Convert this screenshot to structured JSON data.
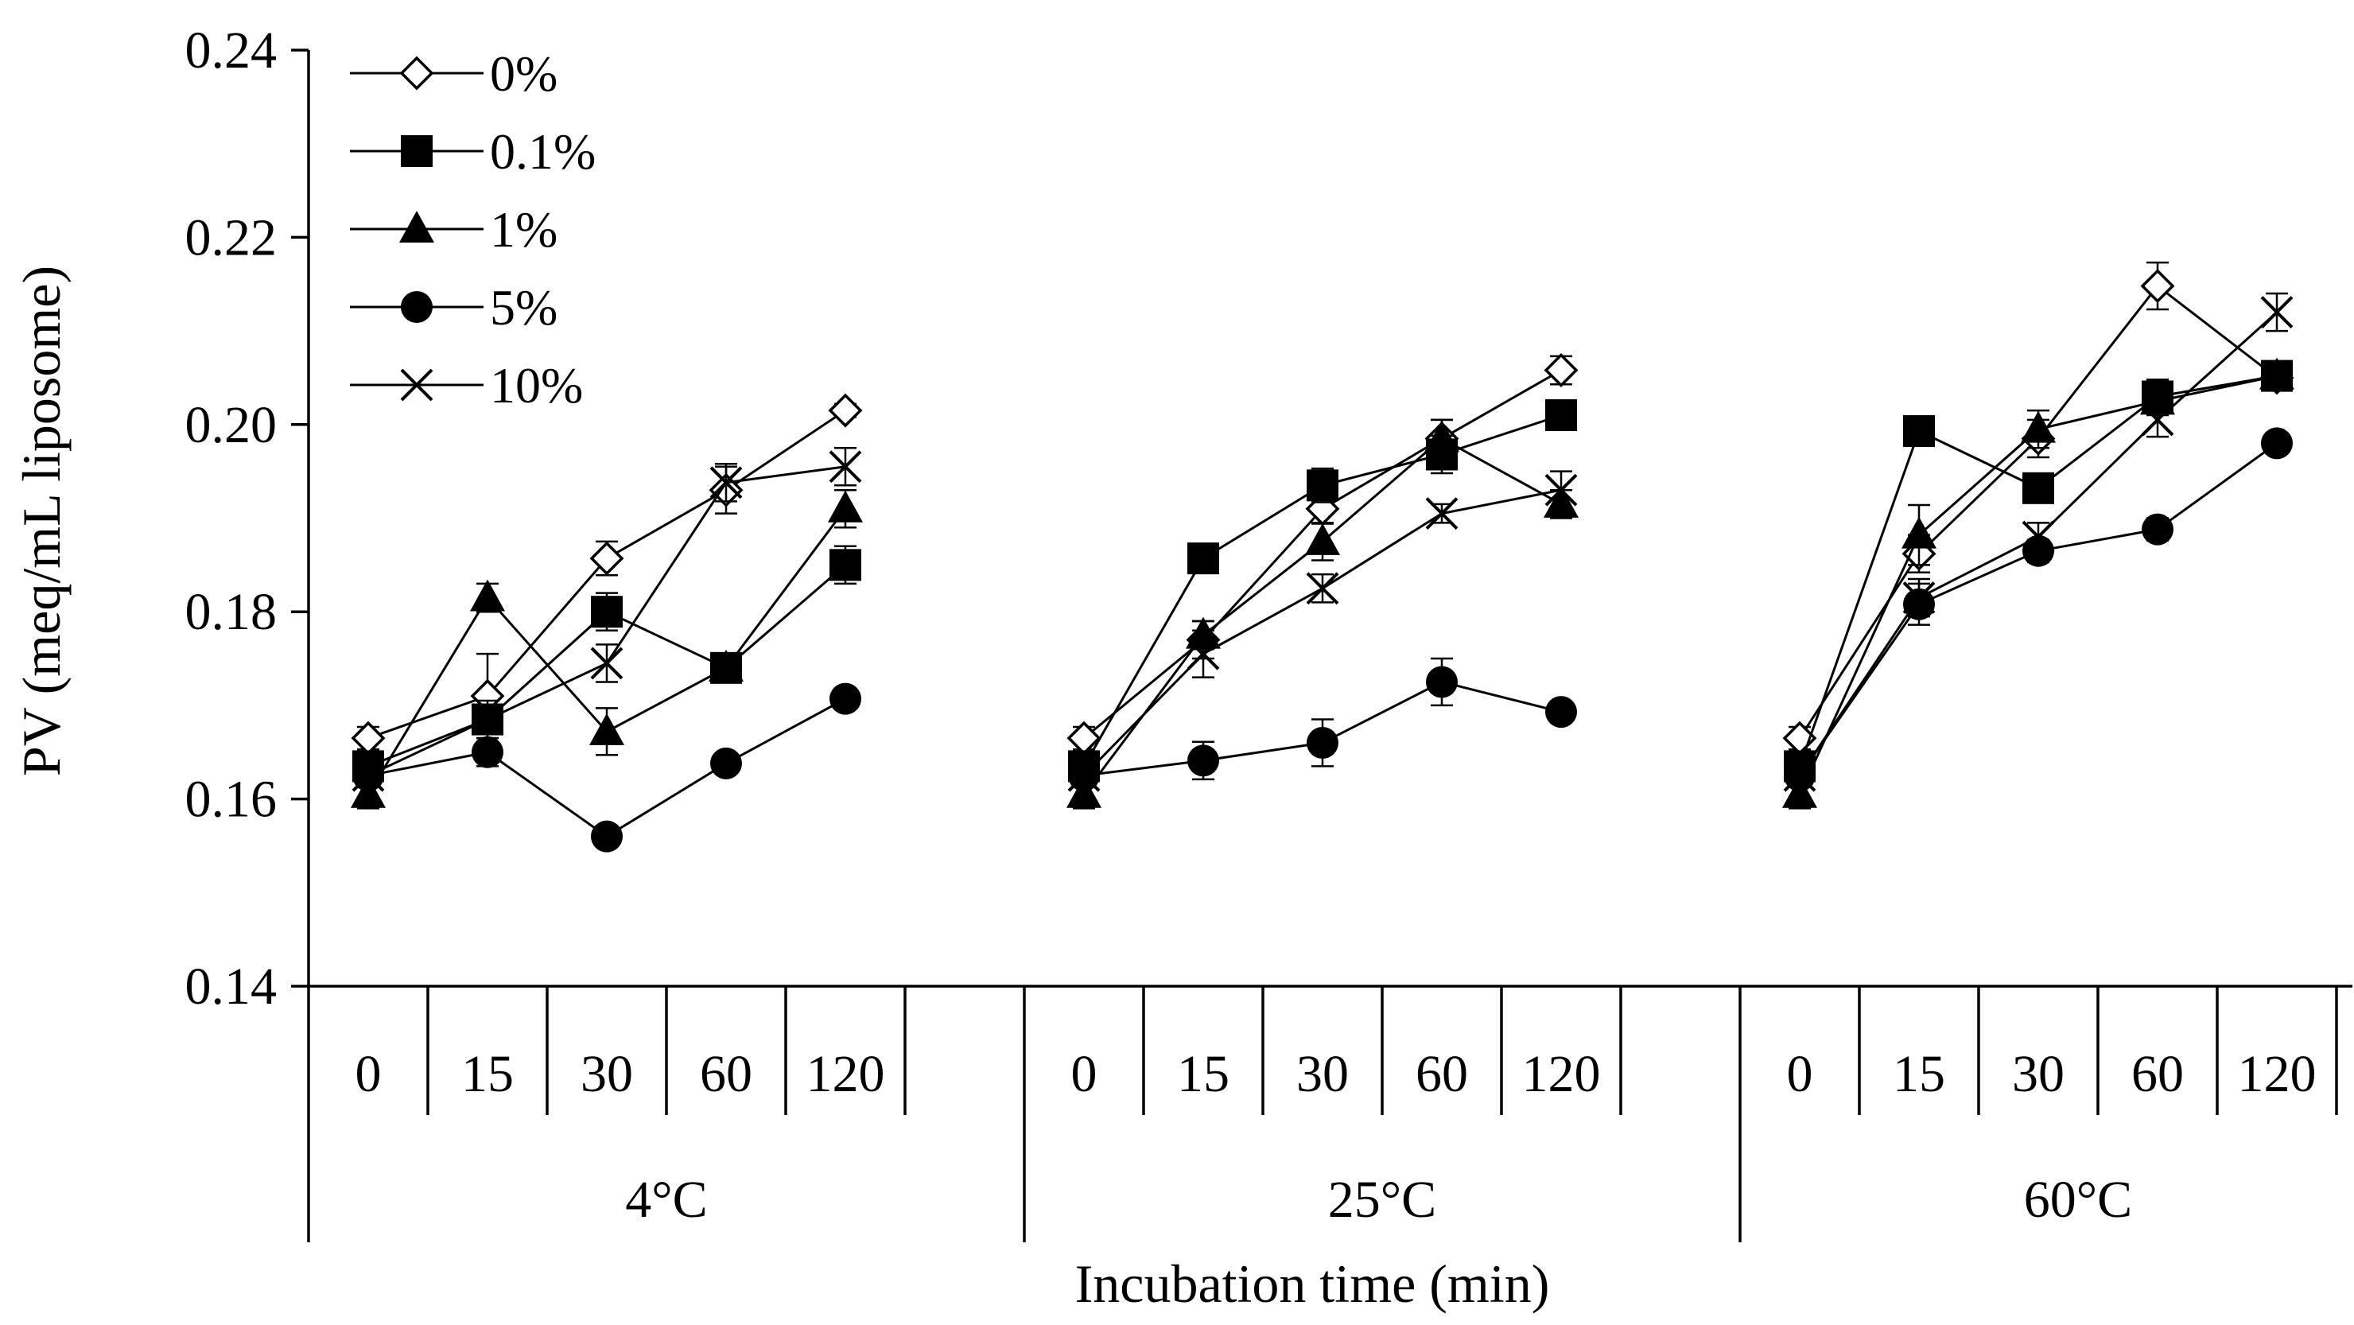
{
  "chart_data": {
    "type": "line",
    "ylabel": "PV (meq/mL liposome)",
    "xlabel": "Incubation time (min)",
    "ylim": [
      0.14,
      0.24
    ],
    "yticks": [
      "0.14",
      "0.16",
      "0.18",
      "0.20",
      "0.22",
      "0.24"
    ],
    "time_labels": [
      "0",
      "15",
      "30",
      "60",
      "120"
    ],
    "groups": [
      "4°C",
      "25°C",
      "60°C"
    ],
    "legend_position": "top-left",
    "series": [
      {
        "name": "0%",
        "marker": "open-diamond",
        "values": [
          [
            0.1665,
            0.171,
            0.1857,
            0.193,
            0.2015
          ],
          [
            0.1665,
            0.177,
            0.191,
            0.1985,
            0.2058
          ],
          [
            0.1665,
            0.1862,
            0.1985,
            0.2148,
            0.205
          ]
        ],
        "errors": [
          [
            0.0012,
            0.0045,
            0.0018,
            0.0025,
            0.0007
          ],
          [
            0.0012,
            0.002,
            0.0016,
            0.002,
            0.0015
          ],
          [
            0.0012,
            0.002,
            0.002,
            0.0025,
            0.0012
          ]
        ]
      },
      {
        "name": "0.1%",
        "marker": "filled-square",
        "values": [
          [
            0.1635,
            0.1685,
            0.18,
            0.174,
            0.185
          ],
          [
            0.1635,
            0.1857,
            0.1935,
            0.1968,
            0.201
          ],
          [
            0.1635,
            0.1993,
            0.1932,
            0.203,
            0.2052
          ]
        ],
        "errors": [
          [
            0.0012,
            0.0015,
            0.002,
            0.0012,
            0.002
          ],
          [
            0.0012,
            0.001,
            0.0018,
            0.002,
            0.0015
          ],
          [
            0.0012,
            0.001,
            0.001,
            0.0018,
            0.001
          ]
        ]
      },
      {
        "name": "1%",
        "marker": "filled-triangle",
        "values": [
          [
            0.1605,
            0.1815,
            0.1672,
            0.174,
            0.191
          ],
          [
            0.1605,
            0.1775,
            0.1875,
            0.1985,
            0.1915
          ],
          [
            0.1605,
            0.1882,
            0.1995,
            0.2025,
            0.2052
          ]
        ],
        "errors": [
          [
            0.0015,
            0.0015,
            0.0025,
            0.0012,
            0.002
          ],
          [
            0.0015,
            0.0015,
            0.002,
            0.002,
            0.0015
          ],
          [
            0.0015,
            0.0032,
            0.002,
            0.0015,
            0.001
          ]
        ]
      },
      {
        "name": "5%",
        "marker": "filled-circle",
        "values": [
          [
            0.1625,
            0.165,
            0.156,
            0.1638,
            0.1707
          ],
          [
            0.1625,
            0.1641,
            0.166,
            0.1725,
            0.1693
          ],
          [
            0.1625,
            0.1808,
            0.1865,
            0.1888,
            0.198
          ]
        ],
        "errors": [
          [
            0.0012,
            0.0015,
            0.001,
            0.001,
            0.001
          ],
          [
            0.0012,
            0.002,
            0.0025,
            0.0025,
            0.001
          ],
          [
            0.0012,
            0.0022,
            0.0012,
            0.0012,
            0.001
          ]
        ]
      },
      {
        "name": "10%",
        "marker": "x",
        "values": [
          [
            0.1625,
            0.1685,
            0.1745,
            0.1938,
            0.1955
          ],
          [
            0.1625,
            0.1755,
            0.1825,
            0.1905,
            0.193
          ],
          [
            0.1625,
            0.1815,
            0.188,
            0.2005,
            0.212
          ]
        ],
        "errors": [
          [
            0.0012,
            0.002,
            0.002,
            0.002,
            0.002
          ],
          [
            0.0012,
            0.0025,
            0.0015,
            0.001,
            0.002
          ],
          [
            0.0012,
            0.002,
            0.0015,
            0.0018,
            0.002
          ]
        ]
      }
    ]
  }
}
